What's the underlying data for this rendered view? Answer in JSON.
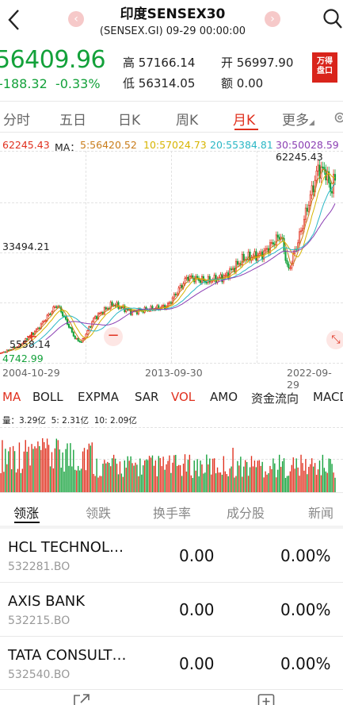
{
  "header": {
    "title": "印度SENSEX30",
    "subtitle": "(SENSEX.GI) 09-29 00:00:00",
    "prev_arrow": "‹",
    "next_arrow": "›"
  },
  "quote": {
    "price": "56409.96",
    "change": "-188.32",
    "change_pct": "-0.33%",
    "high_label": "高",
    "high": "57166.14",
    "low_label": "低",
    "low": "56314.05",
    "open_label": "开",
    "open": "56997.90",
    "amount_label": "额",
    "amount": "0.00",
    "badge": "万得盘口",
    "badge_line1": "万得",
    "badge_line2": "盘口"
  },
  "period_tabs": [
    "分时",
    "五日",
    "日K",
    "周K",
    "月K",
    "更多"
  ],
  "more_caret": "◢",
  "ma_legend": {
    "price": "62245.43",
    "ma_label": "MA：",
    "ma5": "5:56420.52",
    "ma10": "10:57024.73",
    "ma20": "20:55384.81",
    "ma30": "30:50028.59",
    "colors": {
      "ma5": "#c97c1a",
      "ma10": "#d7b400",
      "ma20": "#2ab7c5",
      "ma30": "#8b3fb3",
      "price": "#e0301e"
    }
  },
  "chart": {
    "y_labels": {
      "max_mark": "62245.43",
      "mid": "33494.21",
      "low_mark": "5558.14",
      "min": "4742.99"
    },
    "x_labels": [
      "2004-10-29",
      "2013-09-30",
      "2022-09-29"
    ],
    "zoom_out": "−",
    "expand": "⤡"
  },
  "chart_data": {
    "type": "candlestick",
    "title": "印度SENSEX30",
    "subtitle": "(SENSEX.GI) 09-29 00:00:00",
    "interval": "月K",
    "x_ticks": [
      "2004-10-29",
      "2013-09-30",
      "2022-09-29"
    ],
    "y_marks": [
      62245.43,
      33494.21,
      5558.14,
      4742.99
    ],
    "close_path": [
      [
        "2004-10-29",
        5672
      ],
      [
        "2005-10-31",
        7892
      ],
      [
        "2006-10-31",
        12962
      ],
      [
        "2007-10-31",
        19837
      ],
      [
        "2008-01-31",
        17648
      ],
      [
        "2008-10-31",
        9788
      ],
      [
        "2009-02-27",
        8891
      ],
      [
        "2009-10-30",
        15896
      ],
      [
        "2010-10-29",
        20032
      ],
      [
        "2011-10-31",
        17705
      ],
      [
        "2012-10-31",
        18505
      ],
      [
        "2013-09-30",
        19380
      ],
      [
        "2014-10-31",
        27866
      ],
      [
        "2015-10-30",
        26657
      ],
      [
        "2016-10-28",
        27930
      ],
      [
        "2017-10-31",
        33213
      ],
      [
        "2018-10-31",
        34442
      ],
      [
        "2019-10-31",
        40129
      ],
      [
        "2020-03-31",
        29468
      ],
      [
        "2020-10-30",
        39614
      ],
      [
        "2021-10-29",
        59307
      ],
      [
        "2022-03-31",
        58568
      ],
      [
        "2022-06-30",
        53019
      ],
      [
        "2022-09-29",
        56409.96
      ]
    ],
    "moving_averages": {
      "MA5": 56420.52,
      "MA10": 57024.73,
      "MA20": 55384.81,
      "MA30": 50028.59
    },
    "volume": {
      "label": "量：",
      "vol": "3.29亿",
      "ma5": "2.31亿",
      "ma10": "2.09亿"
    }
  },
  "indicators": [
    "MA",
    "BOLL",
    "EXPMA",
    "SAR",
    "VOL",
    "AMO",
    "资金流向",
    "MACD"
  ],
  "indicator_active": [
    "MA",
    "VOL"
  ],
  "volume_legend": {
    "label": "量：",
    "vol": "3.29亿",
    "ma5_label": "5:",
    "ma5": "2.31亿",
    "ma10_label": "10:",
    "ma10": "2.09亿"
  },
  "stock_tabs": [
    "领涨",
    "领跌",
    "换手率",
    "成分股",
    "新闻"
  ],
  "stocks": [
    {
      "name": "HCL TECHNOL…",
      "code": "532281.BO",
      "value": "0.00",
      "pct": "0.00%"
    },
    {
      "name": "AXIS BANK",
      "code": "532215.BO",
      "value": "0.00",
      "pct": "0.00%"
    },
    {
      "name": "TATA CONSULT…",
      "code": "532540.BO",
      "value": "0.00",
      "pct": "0.00%"
    }
  ]
}
